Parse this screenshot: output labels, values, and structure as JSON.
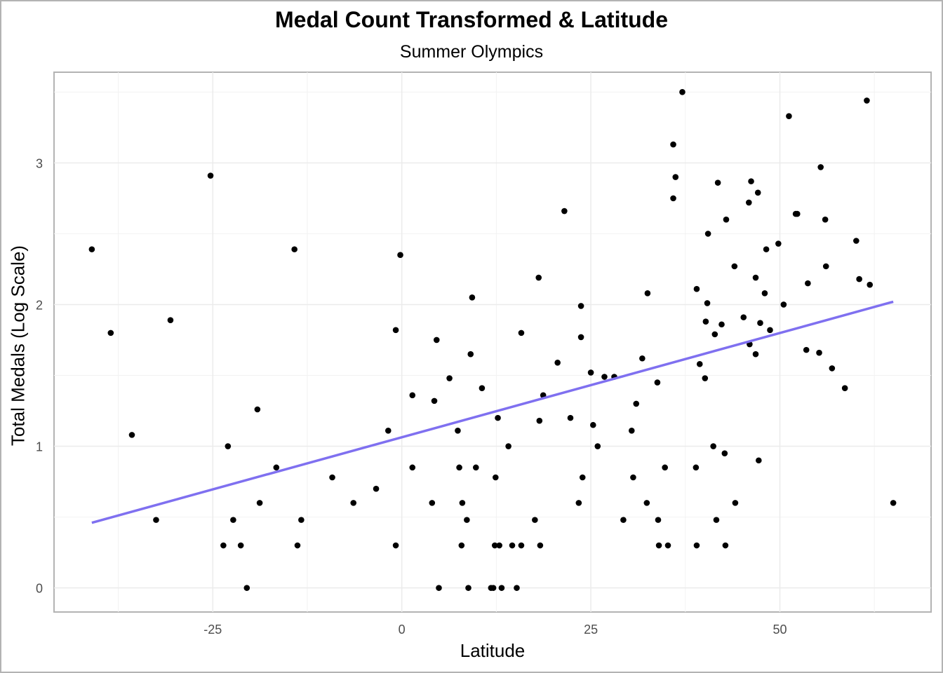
{
  "chart_data": {
    "type": "scatter",
    "title": "Medal Count Transformed & Latitude",
    "subtitle": "Summer Olympics",
    "xlabel": "Latitude",
    "ylabel": "Total Medals (Log Scale)",
    "xlim": [
      -46,
      70
    ],
    "ylim": [
      -0.17,
      3.64
    ],
    "xticks": [
      -25,
      0,
      25,
      50
    ],
    "xtick_labels": [
      "-25",
      "0",
      "25",
      "50"
    ],
    "yticks": [
      0,
      1,
      2,
      3
    ],
    "ytick_labels": [
      "0",
      "1",
      "2",
      "3"
    ],
    "grid": true,
    "point_color": "#000000",
    "trend_color": "#7f70f0",
    "trend_line": {
      "x": [
        -41,
        65
      ],
      "y": [
        0.46,
        2.02
      ]
    },
    "points": [
      {
        "x": -41,
        "y": 2.39
      },
      {
        "x": -38.5,
        "y": 1.8
      },
      {
        "x": -35.7,
        "y": 1.08
      },
      {
        "x": -32.5,
        "y": 0.48
      },
      {
        "x": -30.6,
        "y": 1.89
      },
      {
        "x": -25.3,
        "y": 2.91
      },
      {
        "x": -23.6,
        "y": 0.3
      },
      {
        "x": -23,
        "y": 1.0
      },
      {
        "x": -22.3,
        "y": 0.48
      },
      {
        "x": -21.3,
        "y": 0.3
      },
      {
        "x": -20.5,
        "y": 0.0
      },
      {
        "x": -19.1,
        "y": 1.26
      },
      {
        "x": -18.8,
        "y": 0.6
      },
      {
        "x": -16.6,
        "y": 0.85
      },
      {
        "x": -14.2,
        "y": 2.39
      },
      {
        "x": -13.8,
        "y": 0.3
      },
      {
        "x": -13.3,
        "y": 0.48
      },
      {
        "x": -9.2,
        "y": 0.78
      },
      {
        "x": -6.4,
        "y": 0.6
      },
      {
        "x": -3.4,
        "y": 0.7
      },
      {
        "x": -1.8,
        "y": 1.11
      },
      {
        "x": -0.8,
        "y": 1.82
      },
      {
        "x": -0.8,
        "y": 0.3
      },
      {
        "x": -0.2,
        "y": 2.35
      },
      {
        "x": 1.4,
        "y": 1.36
      },
      {
        "x": 1.4,
        "y": 0.85
      },
      {
        "x": 4.0,
        "y": 0.6
      },
      {
        "x": 4.3,
        "y": 1.32
      },
      {
        "x": 4.6,
        "y": 1.75
      },
      {
        "x": 4.9,
        "y": 0.0
      },
      {
        "x": 6.3,
        "y": 1.48
      },
      {
        "x": 7.4,
        "y": 1.11
      },
      {
        "x": 7.6,
        "y": 0.85
      },
      {
        "x": 7.9,
        "y": 0.3
      },
      {
        "x": 8.0,
        "y": 0.6
      },
      {
        "x": 8.6,
        "y": 0.48
      },
      {
        "x": 8.8,
        "y": 0.0
      },
      {
        "x": 9.1,
        "y": 1.65
      },
      {
        "x": 9.3,
        "y": 2.05
      },
      {
        "x": 9.8,
        "y": 0.85
      },
      {
        "x": 10.6,
        "y": 1.41
      },
      {
        "x": 11.8,
        "y": 0.0
      },
      {
        "x": 12.1,
        "y": 0.0
      },
      {
        "x": 12.3,
        "y": 0.3
      },
      {
        "x": 12.4,
        "y": 0.78
      },
      {
        "x": 12.7,
        "y": 1.2
      },
      {
        "x": 12.9,
        "y": 0.3
      },
      {
        "x": 13.2,
        "y": 0.0
      },
      {
        "x": 14.1,
        "y": 1.0
      },
      {
        "x": 14.6,
        "y": 0.3
      },
      {
        "x": 15.2,
        "y": 0.0
      },
      {
        "x": 15.8,
        "y": 1.8
      },
      {
        "x": 15.8,
        "y": 0.3
      },
      {
        "x": 17.6,
        "y": 0.48
      },
      {
        "x": 18.1,
        "y": 2.19
      },
      {
        "x": 18.2,
        "y": 1.18
      },
      {
        "x": 18.3,
        "y": 0.3
      },
      {
        "x": 18.7,
        "y": 1.36
      },
      {
        "x": 20.6,
        "y": 1.59
      },
      {
        "x": 21.5,
        "y": 2.66
      },
      {
        "x": 22.3,
        "y": 1.2
      },
      {
        "x": 23.4,
        "y": 0.6
      },
      {
        "x": 23.7,
        "y": 1.99
      },
      {
        "x": 23.7,
        "y": 1.77
      },
      {
        "x": 23.9,
        "y": 0.78
      },
      {
        "x": 25.0,
        "y": 1.52
      },
      {
        "x": 25.3,
        "y": 1.15
      },
      {
        "x": 25.9,
        "y": 1.0
      },
      {
        "x": 26.8,
        "y": 1.49
      },
      {
        "x": 28.1,
        "y": 1.49
      },
      {
        "x": 29.3,
        "y": 0.48
      },
      {
        "x": 30.4,
        "y": 1.11
      },
      {
        "x": 30.6,
        "y": 0.78
      },
      {
        "x": 31.0,
        "y": 1.3
      },
      {
        "x": 31.8,
        "y": 1.62
      },
      {
        "x": 32.4,
        "y": 0.6
      },
      {
        "x": 32.5,
        "y": 2.08
      },
      {
        "x": 33.8,
        "y": 1.45
      },
      {
        "x": 33.9,
        "y": 0.48
      },
      {
        "x": 34.0,
        "y": 0.3
      },
      {
        "x": 34.8,
        "y": 0.85
      },
      {
        "x": 35.2,
        "y": 0.3
      },
      {
        "x": 35.9,
        "y": 3.13
      },
      {
        "x": 35.9,
        "y": 2.75
      },
      {
        "x": 36.2,
        "y": 2.9
      },
      {
        "x": 37.1,
        "y": 3.5
      },
      {
        "x": 38.9,
        "y": 0.85
      },
      {
        "x": 39.0,
        "y": 2.11
      },
      {
        "x": 39.0,
        "y": 0.3
      },
      {
        "x": 39.4,
        "y": 1.58
      },
      {
        "x": 40.1,
        "y": 1.48
      },
      {
        "x": 40.2,
        "y": 1.88
      },
      {
        "x": 40.4,
        "y": 2.01
      },
      {
        "x": 40.5,
        "y": 2.5
      },
      {
        "x": 41.2,
        "y": 1.0
      },
      {
        "x": 41.4,
        "y": 1.79
      },
      {
        "x": 41.6,
        "y": 0.48
      },
      {
        "x": 41.8,
        "y": 2.86
      },
      {
        "x": 42.3,
        "y": 1.86
      },
      {
        "x": 42.7,
        "y": 0.95
      },
      {
        "x": 42.8,
        "y": 0.3
      },
      {
        "x": 42.9,
        "y": 2.6
      },
      {
        "x": 44.0,
        "y": 2.27
      },
      {
        "x": 44.1,
        "y": 0.6
      },
      {
        "x": 45.2,
        "y": 1.91
      },
      {
        "x": 45.9,
        "y": 2.72
      },
      {
        "x": 46.0,
        "y": 1.72
      },
      {
        "x": 46.2,
        "y": 2.87
      },
      {
        "x": 46.8,
        "y": 2.19
      },
      {
        "x": 46.8,
        "y": 1.65
      },
      {
        "x": 47.1,
        "y": 2.79
      },
      {
        "x": 47.2,
        "y": 0.9
      },
      {
        "x": 47.4,
        "y": 1.87
      },
      {
        "x": 48.0,
        "y": 2.08
      },
      {
        "x": 48.2,
        "y": 2.39
      },
      {
        "x": 48.7,
        "y": 1.82
      },
      {
        "x": 49.8,
        "y": 2.43
      },
      {
        "x": 50.5,
        "y": 2.0
      },
      {
        "x": 51.2,
        "y": 3.33
      },
      {
        "x": 52.1,
        "y": 2.64
      },
      {
        "x": 52.3,
        "y": 2.64
      },
      {
        "x": 53.5,
        "y": 1.68
      },
      {
        "x": 53.7,
        "y": 2.15
      },
      {
        "x": 55.2,
        "y": 1.66
      },
      {
        "x": 55.4,
        "y": 2.97
      },
      {
        "x": 56.0,
        "y": 2.6
      },
      {
        "x": 56.1,
        "y": 2.27
      },
      {
        "x": 56.9,
        "y": 1.55
      },
      {
        "x": 58.6,
        "y": 1.41
      },
      {
        "x": 60.1,
        "y": 2.45
      },
      {
        "x": 60.5,
        "y": 2.18
      },
      {
        "x": 61.5,
        "y": 3.44
      },
      {
        "x": 61.9,
        "y": 2.14
      },
      {
        "x": 65.0,
        "y": 0.6
      }
    ]
  }
}
